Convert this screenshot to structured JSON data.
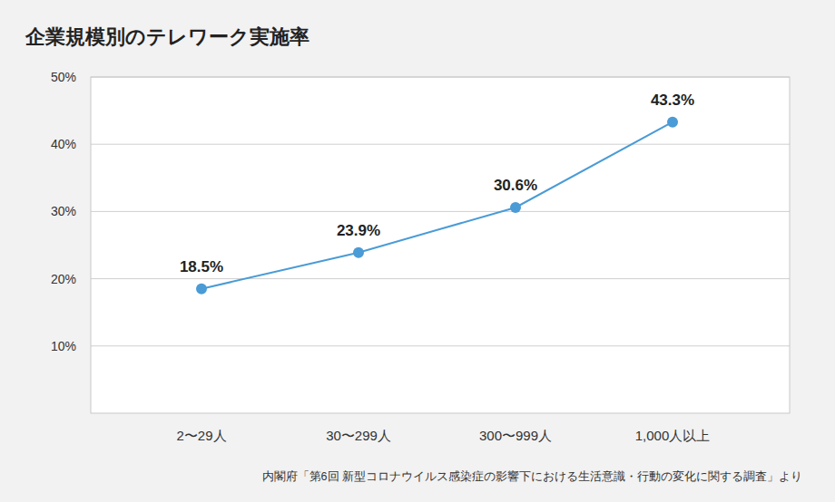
{
  "chart_data": {
    "type": "line",
    "title": "企業規模別のテレワーク実施率",
    "source": "内閣府「第6回 新型コロナウイルス感染症の影響下における生活意識・行動の変化に関する調査」より",
    "categories": [
      "2〜29人",
      "30〜299人",
      "300〜999人",
      "1,000人以上"
    ],
    "values": [
      18.5,
      23.9,
      30.6,
      43.3
    ],
    "value_labels": [
      "18.5%",
      "23.9%",
      "30.6%",
      "43.3%"
    ],
    "color": "#4a9bd6",
    "marker": "circle",
    "data_labels": true,
    "ylim": [
      0,
      50
    ],
    "yticks": [
      {
        "value": 10,
        "label": "10%"
      },
      {
        "value": 20,
        "label": "20%"
      },
      {
        "value": 30,
        "label": "30%"
      },
      {
        "value": 40,
        "label": "40%"
      },
      {
        "value": 50,
        "label": "50%"
      }
    ],
    "grid": true
  }
}
